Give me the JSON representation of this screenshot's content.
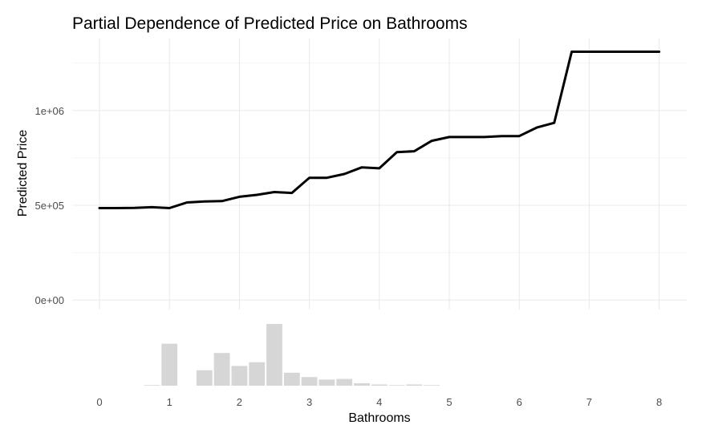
{
  "chart_data": {
    "type": "line",
    "title": "Partial Dependence of Predicted Price on Bathrooms",
    "xlabel": "Bathrooms",
    "ylabel": "Predicted Price",
    "xlim": [
      -0.4,
      8.4
    ],
    "ylim": [
      -50000,
      1380000
    ],
    "x_ticks": [
      0,
      1,
      2,
      3,
      4,
      5,
      6,
      7,
      8
    ],
    "x_tick_labels": [
      "0",
      "1",
      "2",
      "3",
      "4",
      "5",
      "6",
      "7",
      "8"
    ],
    "y_ticks": [
      0,
      500000,
      1000000
    ],
    "y_tick_labels": [
      "0e+00",
      "5e+05",
      "1e+06"
    ],
    "grid": true,
    "line_color": "#000000",
    "series": [
      {
        "x": [
          0,
          0.25,
          0.5,
          0.75,
          1.0,
          1.25,
          1.5,
          1.75,
          2.0,
          2.25,
          2.5,
          2.75,
          3.0,
          3.25,
          3.5,
          3.75,
          4.0,
          4.25,
          4.5,
          4.75,
          5.0,
          5.25,
          5.5,
          5.75,
          6.0,
          6.25,
          6.5,
          6.75,
          7.0,
          7.25,
          7.5,
          7.75,
          8.0
        ],
        "y": [
          485000,
          485000,
          486000,
          490000,
          485000,
          515000,
          520000,
          522000,
          545000,
          555000,
          570000,
          565000,
          645000,
          645000,
          665000,
          700000,
          695000,
          780000,
          785000,
          840000,
          860000,
          860000,
          860000,
          865000,
          865000,
          910000,
          935000,
          1310000,
          1310000,
          1310000,
          1310000,
          1310000,
          1310000
        ]
      }
    ],
    "histogram": {
      "bar_color": "#d6d6d6",
      "bins": [
        {
          "x": 0,
          "count": 0
        },
        {
          "x": 0.25,
          "count": 0
        },
        {
          "x": 0.5,
          "count": 0
        },
        {
          "x": 0.75,
          "count": 1
        },
        {
          "x": 1.0,
          "count": 68
        },
        {
          "x": 1.25,
          "count": 0
        },
        {
          "x": 1.5,
          "count": 25
        },
        {
          "x": 1.75,
          "count": 53
        },
        {
          "x": 2.0,
          "count": 32
        },
        {
          "x": 2.25,
          "count": 38
        },
        {
          "x": 2.5,
          "count": 100
        },
        {
          "x": 2.75,
          "count": 21
        },
        {
          "x": 3.0,
          "count": 14
        },
        {
          "x": 3.25,
          "count": 10
        },
        {
          "x": 3.5,
          "count": 11
        },
        {
          "x": 3.75,
          "count": 4
        },
        {
          "x": 4.0,
          "count": 2
        },
        {
          "x": 4.25,
          "count": 1
        },
        {
          "x": 4.5,
          "count": 2
        },
        {
          "x": 4.75,
          "count": 1
        }
      ]
    }
  }
}
